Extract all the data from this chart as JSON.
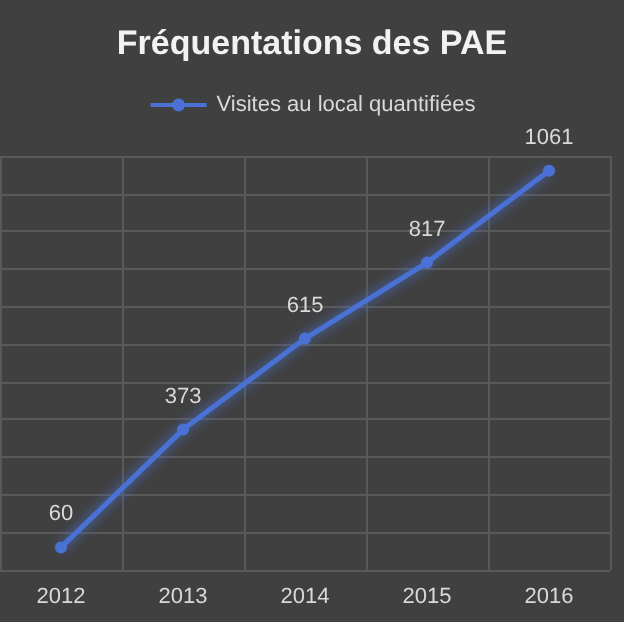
{
  "chart_data": {
    "type": "line",
    "title": "Fréquentations des PAE",
    "categories": [
      "2012",
      "2013",
      "2014",
      "2015",
      "2016"
    ],
    "series": [
      {
        "name": "Visites au local quantifiées",
        "color": "#4a72d4",
        "values": [
          60,
          373,
          615,
          817,
          1061
        ]
      }
    ],
    "data_labels": true,
    "marker": "circle",
    "grid": true,
    "legend": "top"
  }
}
